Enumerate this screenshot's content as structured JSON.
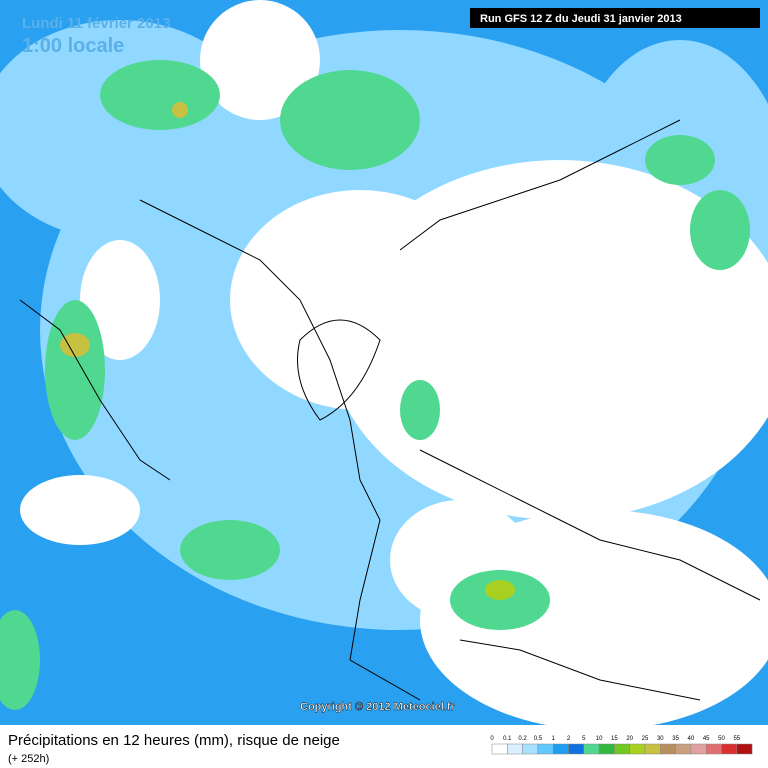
{
  "header": {
    "date": "Lundi 11 février 2013",
    "time": "1:00 locale",
    "run": "Run GFS 12 Z du Jeudi 31 janvier 2013"
  },
  "copyright": "Copyright © 2012 Meteociel.fr",
  "footer": {
    "title": "Précipitations en 12 heures (mm), risque de neige",
    "lead": "(+ 252h)"
  },
  "legend": [
    {
      "label": 0,
      "color": "#ffffff"
    },
    {
      "label": 0.1,
      "color": "#d8f0ff"
    },
    {
      "label": 0.2,
      "color": "#a8e0ff"
    },
    {
      "label": 0.5,
      "color": "#60c8ff"
    },
    {
      "label": 1,
      "color": "#1e9ef0"
    },
    {
      "label": 2,
      "color": "#1070e0"
    },
    {
      "label": 5,
      "color": "#50d890"
    },
    {
      "label": 10,
      "color": "#30b840"
    },
    {
      "label": 15,
      "color": "#70c820"
    },
    {
      "label": 20,
      "color": "#a8d020"
    },
    {
      "label": 25,
      "color": "#c8c040"
    },
    {
      "label": 30,
      "color": "#b89060"
    },
    {
      "label": 35,
      "color": "#c8a080"
    },
    {
      "label": 40,
      "color": "#e0a0a0"
    },
    {
      "label": 45,
      "color": "#e07070"
    },
    {
      "label": 50,
      "color": "#d83030"
    },
    {
      "label": 55,
      "color": "#b01010"
    }
  ]
}
